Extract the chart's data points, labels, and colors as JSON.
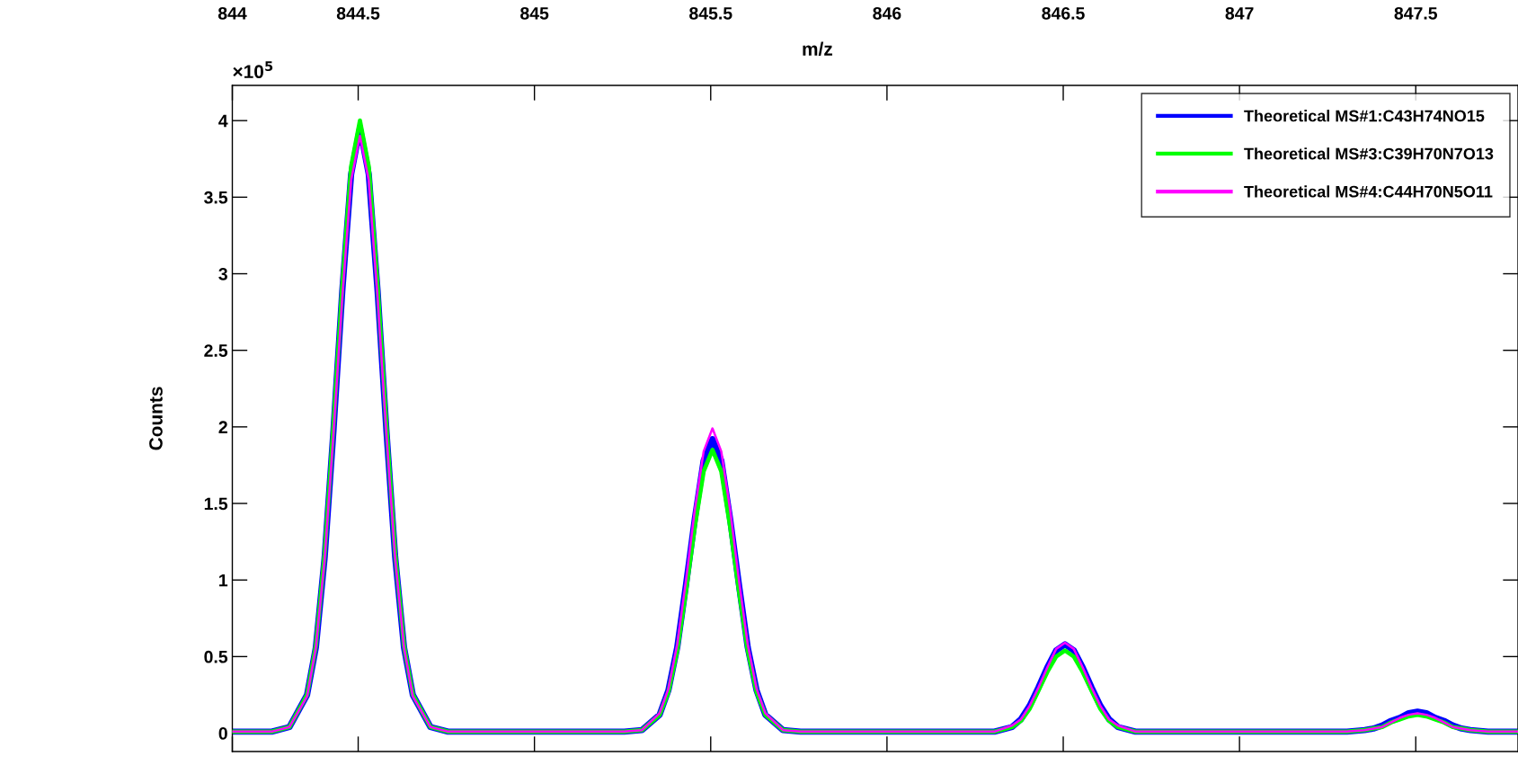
{
  "chart_data": {
    "type": "line",
    "ylabel": "Counts",
    "xlabel": "m/z",
    "annotations": [
      "×10$^{5}$"
    ],
    "x": [
      844.143,
      844.255,
      844.305,
      844.355,
      844.38,
      844.405,
      844.43,
      844.455,
      844.48,
      844.505,
      844.53,
      844.555,
      844.58,
      844.605,
      844.63,
      844.655,
      844.705,
      844.755,
      845.255,
      845.305,
      845.355,
      845.38,
      845.405,
      845.43,
      845.455,
      845.48,
      845.505,
      845.53,
      845.555,
      845.58,
      845.605,
      845.63,
      845.655,
      845.705,
      845.755,
      846.255,
      846.305,
      846.355,
      846.38,
      846.405,
      846.43,
      846.455,
      846.48,
      846.505,
      846.53,
      846.555,
      846.58,
      846.605,
      846.63,
      846.655,
      846.705,
      846.755,
      847.255,
      847.305,
      847.355,
      847.38,
      847.405,
      847.43,
      847.455,
      847.48,
      847.505,
      847.53,
      847.555,
      847.58,
      847.605,
      847.63,
      847.655,
      847.705,
      847.755,
      847.79
    ],
    "series": [
      {
        "name": "Theoretical MS#1:C43H74NO15",
        "color": "#0000ff",
        "values": [
          0.01,
          0.01,
          0.04,
          0.25,
          0.56,
          1.15,
          1.98,
          2.89,
          3.65,
          3.95,
          3.65,
          2.89,
          1.98,
          1.15,
          0.56,
          0.25,
          0.04,
          0.01,
          0.01,
          0.02,
          0.12,
          0.28,
          0.56,
          0.97,
          1.4,
          1.78,
          1.92,
          1.78,
          1.4,
          0.97,
          0.56,
          0.28,
          0.12,
          0.02,
          0.01,
          0.01,
          0.01,
          0.04,
          0.09,
          0.18,
          0.3,
          0.43,
          0.54,
          0.58,
          0.54,
          0.43,
          0.3,
          0.18,
          0.09,
          0.04,
          0.01,
          0.01,
          0.01,
          0.01,
          0.02,
          0.03,
          0.05,
          0.08,
          0.1,
          0.13,
          0.14,
          0.13,
          0.1,
          0.08,
          0.05,
          0.03,
          0.02,
          0.01,
          0.01,
          0.01
        ]
      },
      {
        "name": "Theoretical MS#3:C39H70N7O13",
        "color": "#00ff00",
        "values": [
          0.01,
          0.01,
          0.04,
          0.25,
          0.57,
          1.17,
          2.01,
          2.92,
          3.7,
          4.0,
          3.7,
          2.92,
          2.01,
          1.17,
          0.57,
          0.25,
          0.04,
          0.01,
          0.01,
          0.02,
          0.12,
          0.27,
          0.54,
          0.93,
          1.35,
          1.71,
          1.85,
          1.71,
          1.35,
          0.93,
          0.54,
          0.27,
          0.12,
          0.02,
          0.01,
          0.01,
          0.01,
          0.04,
          0.08,
          0.16,
          0.28,
          0.4,
          0.5,
          0.54,
          0.5,
          0.4,
          0.28,
          0.16,
          0.08,
          0.04,
          0.01,
          0.01,
          0.01,
          0.01,
          0.02,
          0.03,
          0.04,
          0.07,
          0.09,
          0.11,
          0.12,
          0.11,
          0.09,
          0.07,
          0.04,
          0.03,
          0.02,
          0.01,
          0.01,
          0.01
        ]
      },
      {
        "name": "Theoretical MS#4:C44H70N5O11",
        "color": "#ff00ff",
        "values": [
          0.01,
          0.01,
          0.04,
          0.24,
          0.56,
          1.14,
          1.96,
          2.85,
          3.61,
          3.9,
          3.61,
          2.85,
          1.96,
          1.14,
          0.56,
          0.24,
          0.04,
          0.01,
          0.01,
          0.02,
          0.13,
          0.29,
          0.58,
          1.0,
          1.46,
          1.84,
          1.99,
          1.84,
          1.46,
          1.0,
          0.58,
          0.29,
          0.13,
          0.02,
          0.01,
          0.01,
          0.01,
          0.05,
          0.09,
          0.18,
          0.3,
          0.43,
          0.55,
          0.59,
          0.55,
          0.43,
          0.3,
          0.18,
          0.09,
          0.05,
          0.01,
          0.01,
          0.01,
          0.01,
          0.02,
          0.03,
          0.04,
          0.07,
          0.1,
          0.12,
          0.13,
          0.12,
          0.1,
          0.07,
          0.04,
          0.03,
          0.02,
          0.01,
          0.01,
          0.01
        ]
      }
    ],
    "xlim": [
      844.143,
      847.79
    ],
    "xticks": [
      {
        "value": 844.143,
        "label": "844"
      },
      844.5,
      845,
      845.5,
      846,
      846.5,
      847,
      847.5
    ],
    "ylim": [
      -0.12,
      4.23
    ],
    "yticks": [
      0,
      0.5,
      1,
      1.5,
      2,
      2.5,
      3,
      3.5,
      4
    ],
    "legend": "top right",
    "grid": false,
    "marker": "none",
    "line_style": "solid"
  }
}
